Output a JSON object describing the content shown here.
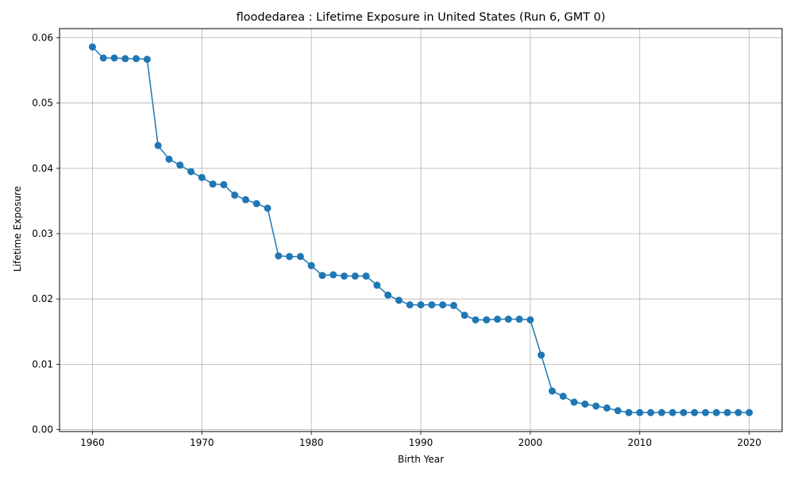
{
  "chart_data": {
    "type": "line",
    "title": "floodedarea : Lifetime Exposure in United States (Run 6, GMT 0)",
    "xlabel": "Birth Year",
    "ylabel": "Lifetime Exposure",
    "xlim": [
      1957,
      2023
    ],
    "ylim": [
      -0.0003,
      0.0614
    ],
    "grid": true,
    "marker": "circle",
    "x_ticks": [
      "1960",
      "1970",
      "1980",
      "1990",
      "2000",
      "2010",
      "2020"
    ],
    "y_ticks": [
      "0.00",
      "0.01",
      "0.02",
      "0.03",
      "0.04",
      "0.05",
      "0.06"
    ],
    "series": [
      {
        "color": "#1f77b4",
        "x": [
          1960,
          1961,
          1962,
          1963,
          1964,
          1965,
          1966,
          1967,
          1968,
          1969,
          1970,
          1971,
          1972,
          1973,
          1974,
          1975,
          1976,
          1977,
          1978,
          1979,
          1980,
          1981,
          1982,
          1983,
          1984,
          1985,
          1986,
          1987,
          1988,
          1989,
          1990,
          1991,
          1992,
          1993,
          1994,
          1995,
          1996,
          1997,
          1998,
          1999,
          2000,
          2001,
          2002,
          2003,
          2004,
          2005,
          2006,
          2007,
          2008,
          2009,
          2010,
          2011,
          2012,
          2013,
          2014,
          2015,
          2016,
          2017,
          2018,
          2019,
          2020
        ],
        "y": [
          0.0586,
          0.0569,
          0.0569,
          0.0568,
          0.0568,
          0.0567,
          0.0435,
          0.0414,
          0.0405,
          0.0395,
          0.0386,
          0.0376,
          0.0375,
          0.0359,
          0.0352,
          0.0346,
          0.0339,
          0.0266,
          0.0265,
          0.0265,
          0.0251,
          0.0236,
          0.0237,
          0.0235,
          0.0235,
          0.0235,
          0.0221,
          0.0206,
          0.0198,
          0.0191,
          0.0191,
          0.0191,
          0.0191,
          0.019,
          0.0175,
          0.0168,
          0.0168,
          0.0169,
          0.0169,
          0.0169,
          0.0168,
          0.0114,
          0.0059,
          0.0051,
          0.0042,
          0.0039,
          0.0036,
          0.0033,
          0.0029,
          0.0026,
          0.0026,
          0.0026,
          0.0026,
          0.0026,
          0.0026,
          0.0026,
          0.0026,
          0.0026,
          0.0026,
          0.0026,
          0.0026
        ]
      }
    ]
  }
}
